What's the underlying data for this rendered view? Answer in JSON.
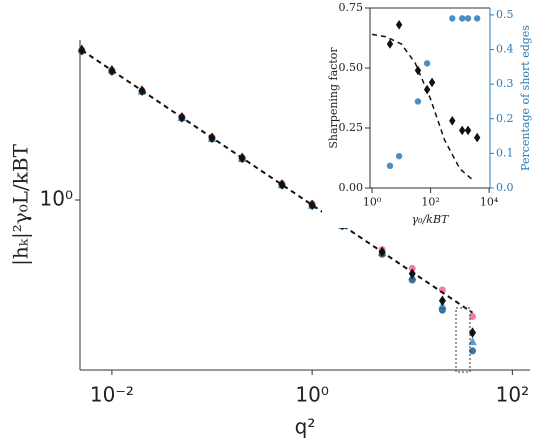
{
  "chart_data": [
    {
      "type": "scatter",
      "log_x": true,
      "log_y": true,
      "xlabel": "q²",
      "ylabel": "|hₖ|²γ₀L/kBT",
      "xlim": [
        0.0048,
        150
      ],
      "ylim": [
        0.0075,
        100
      ],
      "xticks": [
        {
          "value": 0.01,
          "label": "10⁻²"
        },
        {
          "value": 1,
          "label": "10⁰"
        },
        {
          "value": 100,
          "label": "10²"
        }
      ],
      "yticks": [
        {
          "value": 1,
          "label": "10⁰"
        }
      ],
      "x": [
        0.005,
        0.01,
        0.02,
        0.05,
        0.1,
        0.2,
        0.5,
        1,
        2,
        5,
        10,
        20,
        40
      ],
      "series": [
        {
          "color": "#f06a85",
          "marker": "circle",
          "values": [
            75,
            42,
            23.5,
            11,
            6.1,
            3.4,
            1.6,
            0.9,
            0.51,
            0.24,
            0.14,
            0.075,
            0.035
          ]
        },
        {
          "color": "#5a9fc8",
          "marker": "triangle",
          "values": [
            78,
            43,
            23,
            10.7,
            5.9,
            3.3,
            1.55,
            0.86,
            0.48,
            0.22,
            0.11,
            0.048,
            0.017
          ]
        },
        {
          "color": "#1f5a8a",
          "marker": "circle",
          "values": [
            72,
            40,
            22.5,
            10.5,
            5.8,
            3.25,
            1.52,
            0.85,
            0.47,
            0.21,
            0.1,
            0.042,
            0.013
          ]
        },
        {
          "color": "#111111",
          "marker": "diamond",
          "values": [
            74.6,
            41.6,
            23.3,
            10.8,
            6.0,
            3.36,
            1.56,
            0.87,
            0.49,
            0.225,
            0.12,
            0.055,
            0.022
          ]
        }
      ],
      "fit": {
        "color": "#111111",
        "dash": true,
        "x": [
          0.005,
          40
        ],
        "values": [
          74.6,
          0.039
        ]
      }
    },
    {
      "type": "scatter",
      "log_x": true,
      "log_y": false,
      "xlabel": "γ₀/kBT",
      "ylabel": "Sharpening factor",
      "y2label": "Percentage of short edges",
      "y2color": "#2a7ab8",
      "xlim": [
        0.85,
        10700
      ],
      "ylim": [
        0,
        0.75
      ],
      "y2lim": [
        0,
        0.52
      ],
      "xticks": [
        {
          "value": 1,
          "label": "10⁰"
        },
        {
          "value": 100,
          "label": "10²"
        },
        {
          "value": 10000,
          "label": "10⁴"
        }
      ],
      "yticks": [
        {
          "value": 0,
          "label": "0.00"
        },
        {
          "value": 0.25,
          "label": "0.25"
        },
        {
          "value": 0.5,
          "label": "0.50"
        },
        {
          "value": 0.75,
          "label": "0.75"
        }
      ],
      "y2ticks": [
        {
          "value": 0,
          "label": "0.0"
        },
        0.1,
        0.2,
        0.3,
        0.4,
        0.5
      ],
      "series": [
        {
          "color": "#111111",
          "marker": "diamond",
          "x": [
            4.1,
            8.4,
            37,
            76,
            112,
            550,
            1200,
            1900,
            3900
          ],
          "values": [
            0.6,
            0.68,
            0.49,
            0.41,
            0.44,
            0.28,
            0.24,
            0.24,
            0.21
          ]
        },
        {
          "color": "#2a7ab8",
          "marker": "circle",
          "axis": "y2",
          "x": [
            4.1,
            8.4,
            37,
            76,
            550,
            1200,
            1900,
            3900
          ],
          "values": [
            0.064,
            0.092,
            0.25,
            0.36,
            0.49,
            0.49,
            0.49,
            0.49
          ]
        }
      ],
      "fit": {
        "color": "#111111",
        "dash": true,
        "x": [
          1,
          3,
          10,
          30,
          100,
          300,
          1000,
          3000
        ],
        "values": [
          0.64,
          0.63,
          0.6,
          0.52,
          0.37,
          0.2,
          0.08,
          0.03
        ]
      }
    }
  ]
}
